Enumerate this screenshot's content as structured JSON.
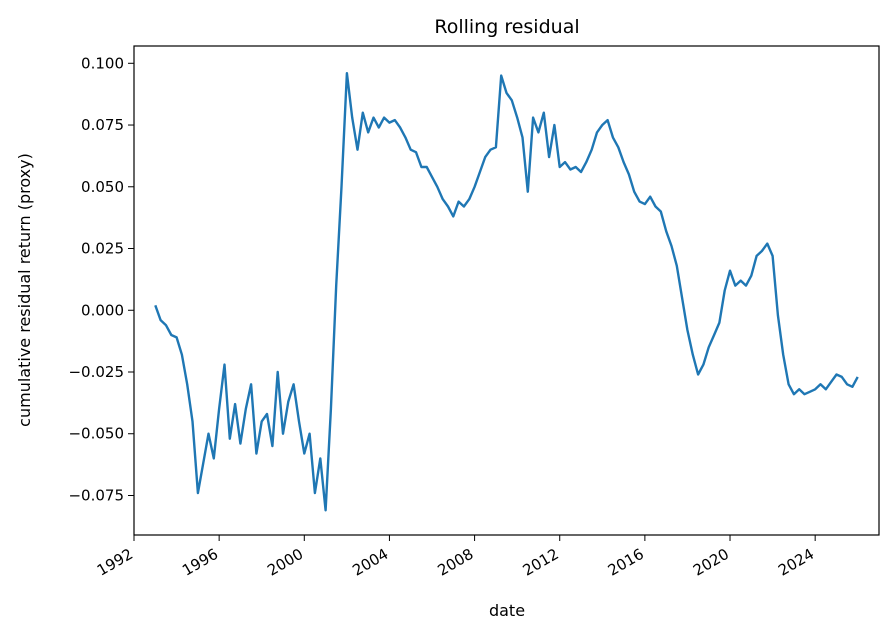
{
  "chart_data": {
    "type": "line",
    "title": "Rolling residual",
    "xlabel": "date",
    "ylabel": "cumulative residual return (proxy)",
    "grid": false,
    "legend": "none",
    "xlim": [
      "1992-01-01",
      "2026-12-31"
    ],
    "ylim": [
      -0.091,
      0.107
    ],
    "x_ticks": [
      "1992",
      "1996",
      "2000",
      "2004",
      "2008",
      "2012",
      "2016",
      "2020",
      "2024"
    ],
    "y_ticks": [
      -0.075,
      -0.05,
      -0.025,
      0.0,
      0.025,
      0.05,
      0.075,
      0.1
    ],
    "y_tick_labels": [
      "−0.075",
      "−0.050",
      "−0.025",
      "0.000",
      "0.025",
      "0.050",
      "0.075",
      "0.100"
    ],
    "series": [
      {
        "color": "#1f77b4",
        "points": [
          [
            "1993-01-01",
            0.002
          ],
          [
            "1993-04-01",
            -0.004
          ],
          [
            "1993-07-01",
            -0.006
          ],
          [
            "1993-10-01",
            -0.01
          ],
          [
            "1994-01-01",
            -0.011
          ],
          [
            "1994-04-01",
            -0.018
          ],
          [
            "1994-07-01",
            -0.03
          ],
          [
            "1994-10-01",
            -0.045
          ],
          [
            "1995-01-01",
            -0.074
          ],
          [
            "1995-04-01",
            -0.062
          ],
          [
            "1995-07-01",
            -0.05
          ],
          [
            "1995-10-01",
            -0.06
          ],
          [
            "1996-01-01",
            -0.04
          ],
          [
            "1996-04-01",
            -0.022
          ],
          [
            "1996-07-01",
            -0.052
          ],
          [
            "1996-10-01",
            -0.038
          ],
          [
            "1997-01-01",
            -0.054
          ],
          [
            "1997-04-01",
            -0.04
          ],
          [
            "1997-07-01",
            -0.03
          ],
          [
            "1997-10-01",
            -0.058
          ],
          [
            "1998-01-01",
            -0.045
          ],
          [
            "1998-04-01",
            -0.042
          ],
          [
            "1998-07-01",
            -0.055
          ],
          [
            "1998-10-01",
            -0.025
          ],
          [
            "1999-01-01",
            -0.05
          ],
          [
            "1999-04-01",
            -0.037
          ],
          [
            "1999-07-01",
            -0.03
          ],
          [
            "1999-10-01",
            -0.045
          ],
          [
            "2000-01-01",
            -0.058
          ],
          [
            "2000-04-01",
            -0.05
          ],
          [
            "2000-07-01",
            -0.074
          ],
          [
            "2000-10-01",
            -0.06
          ],
          [
            "2001-01-01",
            -0.081
          ],
          [
            "2001-04-01",
            -0.04
          ],
          [
            "2001-07-01",
            0.01
          ],
          [
            "2001-10-01",
            0.05
          ],
          [
            "2002-01-01",
            0.096
          ],
          [
            "2002-04-01",
            0.078
          ],
          [
            "2002-07-01",
            0.065
          ],
          [
            "2002-10-01",
            0.08
          ],
          [
            "2003-01-01",
            0.072
          ],
          [
            "2003-04-01",
            0.078
          ],
          [
            "2003-07-01",
            0.074
          ],
          [
            "2003-10-01",
            0.078
          ],
          [
            "2004-01-01",
            0.076
          ],
          [
            "2004-04-01",
            0.077
          ],
          [
            "2004-07-01",
            0.074
          ],
          [
            "2004-10-01",
            0.07
          ],
          [
            "2005-01-01",
            0.065
          ],
          [
            "2005-04-01",
            0.064
          ],
          [
            "2005-07-01",
            0.058
          ],
          [
            "2005-10-01",
            0.058
          ],
          [
            "2006-01-01",
            0.054
          ],
          [
            "2006-04-01",
            0.05
          ],
          [
            "2006-07-01",
            0.045
          ],
          [
            "2006-10-01",
            0.042
          ],
          [
            "2007-01-01",
            0.038
          ],
          [
            "2007-04-01",
            0.044
          ],
          [
            "2007-07-01",
            0.042
          ],
          [
            "2007-10-01",
            0.045
          ],
          [
            "2008-01-01",
            0.05
          ],
          [
            "2008-04-01",
            0.056
          ],
          [
            "2008-07-01",
            0.062
          ],
          [
            "2008-10-01",
            0.065
          ],
          [
            "2009-01-01",
            0.066
          ],
          [
            "2009-04-01",
            0.095
          ],
          [
            "2009-07-01",
            0.088
          ],
          [
            "2009-10-01",
            0.085
          ],
          [
            "2010-01-01",
            0.078
          ],
          [
            "2010-04-01",
            0.07
          ],
          [
            "2010-07-01",
            0.048
          ],
          [
            "2010-10-01",
            0.078
          ],
          [
            "2011-01-01",
            0.072
          ],
          [
            "2011-04-01",
            0.08
          ],
          [
            "2011-07-01",
            0.062
          ],
          [
            "2011-10-01",
            0.075
          ],
          [
            "2012-01-01",
            0.058
          ],
          [
            "2012-04-01",
            0.06
          ],
          [
            "2012-07-01",
            0.057
          ],
          [
            "2012-10-01",
            0.058
          ],
          [
            "2013-01-01",
            0.056
          ],
          [
            "2013-04-01",
            0.06
          ],
          [
            "2013-07-01",
            0.065
          ],
          [
            "2013-10-01",
            0.072
          ],
          [
            "2014-01-01",
            0.075
          ],
          [
            "2014-04-01",
            0.077
          ],
          [
            "2014-07-01",
            0.07
          ],
          [
            "2014-10-01",
            0.066
          ],
          [
            "2015-01-01",
            0.06
          ],
          [
            "2015-04-01",
            0.055
          ],
          [
            "2015-07-01",
            0.048
          ],
          [
            "2015-10-01",
            0.044
          ],
          [
            "2016-01-01",
            0.043
          ],
          [
            "2016-04-01",
            0.046
          ],
          [
            "2016-07-01",
            0.042
          ],
          [
            "2016-10-01",
            0.04
          ],
          [
            "2017-01-01",
            0.032
          ],
          [
            "2017-04-01",
            0.026
          ],
          [
            "2017-07-01",
            0.018
          ],
          [
            "2017-10-01",
            0.005
          ],
          [
            "2018-01-01",
            -0.008
          ],
          [
            "2018-04-01",
            -0.018
          ],
          [
            "2018-07-01",
            -0.026
          ],
          [
            "2018-10-01",
            -0.022
          ],
          [
            "2019-01-01",
            -0.015
          ],
          [
            "2019-04-01",
            -0.01
          ],
          [
            "2019-07-01",
            -0.005
          ],
          [
            "2019-10-01",
            0.008
          ],
          [
            "2020-01-01",
            0.016
          ],
          [
            "2020-04-01",
            0.01
          ],
          [
            "2020-07-01",
            0.012
          ],
          [
            "2020-10-01",
            0.01
          ],
          [
            "2021-01-01",
            0.014
          ],
          [
            "2021-04-01",
            0.022
          ],
          [
            "2021-07-01",
            0.024
          ],
          [
            "2021-10-01",
            0.027
          ],
          [
            "2022-01-01",
            0.022
          ],
          [
            "2022-04-01",
            -0.002
          ],
          [
            "2022-07-01",
            -0.018
          ],
          [
            "2022-10-01",
            -0.03
          ],
          [
            "2023-01-01",
            -0.034
          ],
          [
            "2023-04-01",
            -0.032
          ],
          [
            "2023-07-01",
            -0.034
          ],
          [
            "2023-10-01",
            -0.033
          ],
          [
            "2024-01-01",
            -0.032
          ],
          [
            "2024-04-01",
            -0.03
          ],
          [
            "2024-07-01",
            -0.032
          ],
          [
            "2024-10-01",
            -0.029
          ],
          [
            "2025-01-01",
            -0.026
          ],
          [
            "2025-04-01",
            -0.027
          ],
          [
            "2025-07-01",
            -0.03
          ],
          [
            "2025-10-01",
            -0.031
          ],
          [
            "2026-01-01",
            -0.027
          ]
        ]
      }
    ]
  }
}
